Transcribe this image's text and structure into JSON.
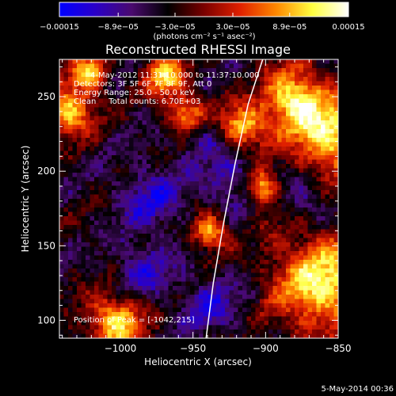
{
  "chart_data": {
    "type": "heatmap",
    "title": "Reconstructed RHESSI Image",
    "xlabel": "Heliocentric X (arcsec)",
    "ylabel": "Heliocentric Y (arcsec)",
    "xlim": [
      -1042,
      -850
    ],
    "ylim": [
      88,
      275
    ],
    "x_ticks": [
      -1000,
      -950,
      -900,
      -850
    ],
    "x_tick_labels": [
      "−1000",
      "−950",
      "−900",
      "−850"
    ],
    "y_ticks": [
      100,
      150,
      200,
      250
    ],
    "y_tick_labels": [
      "100",
      "150",
      "200",
      "250"
    ],
    "colorbar": {
      "range": [
        -0.00015,
        0.00015
      ],
      "tick_values": [
        -0.00015,
        -8.9e-05,
        -3e-05,
        3e-05,
        8.9e-05,
        0.00015
      ],
      "tick_labels": [
        "−0.00015",
        "−8.9e−05",
        "−3.0e−05",
        "3.0e−05",
        "8.9e−05",
        "0.00015"
      ],
      "unit_label": "(photons cm⁻² s⁻¹ asec⁻²)",
      "colors": [
        "#0000ff",
        "#2a00c8",
        "#4a0a6e",
        "#000000",
        "#7a0000",
        "#e02000",
        "#ff8800",
        "#ffff40",
        "#ffffff"
      ]
    },
    "annotations": [
      "4-May-2012 11:31:10.000 to 11:37:10.000",
      "Detectors: 3F 5F 6F 7F 8F 9F, Att 0",
      "Energy Range: 25.0 - 50.0 keV",
      "Clean     Total counts: 6.70E+03",
      "Position of Peak = [-1042,215]"
    ],
    "limb_curve": {
      "x": [
        -941,
        -936,
        -929,
        -921,
        -912,
        -902
      ],
      "y": [
        88,
        125,
        165,
        205,
        245,
        275
      ]
    },
    "grid": false,
    "timestamp": "5-May-2014 00:36"
  }
}
